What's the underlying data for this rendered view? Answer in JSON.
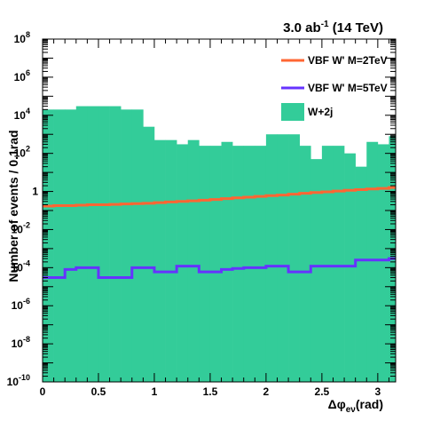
{
  "chart_data": {
    "type": "histogram",
    "title": "3.0 ab⁻¹ (14 TeV)",
    "title_parts": {
      "pre": "3.0 ab",
      "sup": "-1",
      "post": " (14 TeV)"
    },
    "xlabel": "Δφ",
    "xlabel_sub": "eν",
    "xlabel_unit": "(rad)",
    "ylabel": "Number of events / 0.1rad",
    "xlim": [
      0,
      3.16
    ],
    "ylim": [
      1e-10,
      100000000.0
    ],
    "y_scale": "log",
    "grid": false,
    "legend_position": "top-right",
    "x_ticks": [
      0,
      0.5,
      1,
      1.5,
      2,
      2.5,
      3
    ],
    "x_tick_labels": [
      "0",
      "0.5",
      "1",
      "1.5",
      "2",
      "2.5",
      "3"
    ],
    "y_ticks": [
      {
        "base": "10",
        "exp": "-10"
      },
      {
        "base": "10",
        "exp": "-8"
      },
      {
        "base": "10",
        "exp": "-6"
      },
      {
        "base": "10",
        "exp": "-4"
      },
      {
        "base": "10",
        "exp": "-2"
      },
      {
        "base": "1",
        "exp": ""
      },
      {
        "base": "10",
        "exp": "2"
      },
      {
        "base": "10",
        "exp": "4"
      },
      {
        "base": "10",
        "exp": "6"
      },
      {
        "base": "10",
        "exp": "8"
      }
    ],
    "bin_edges_start": 0,
    "bin_width": 0.1,
    "series": [
      {
        "name": "W+2j",
        "style": "filled",
        "color": "#33cc99",
        "values": [
          20000,
          20000,
          20000,
          30000,
          30000,
          30000,
          30000,
          20000,
          20000,
          2500,
          500,
          500,
          300,
          500,
          250,
          250,
          400,
          250,
          250,
          250,
          1000,
          1000,
          1000,
          250,
          50,
          250,
          250,
          100,
          20,
          400,
          300,
          800,
          800,
          500,
          300,
          200,
          200,
          200,
          500,
          500,
          200,
          200,
          500,
          200,
          200,
          300,
          300,
          200,
          500,
          300,
          300,
          300,
          200,
          200,
          200,
          200,
          300,
          300,
          300,
          300,
          250,
          500,
          500
        ]
      },
      {
        "name": "VBF W' M=2TeV",
        "style": "line",
        "color": "#ff6633",
        "values": [
          0.17,
          0.18,
          0.18,
          0.19,
          0.2,
          0.2,
          0.21,
          0.22,
          0.23,
          0.24,
          0.26,
          0.28,
          0.3,
          0.32,
          0.35,
          0.38,
          0.42,
          0.46,
          0.5,
          0.55,
          0.6,
          0.65,
          0.72,
          0.8,
          0.88,
          0.95,
          1.05,
          1.15,
          1.25,
          1.35,
          1.45,
          1.6,
          1.75,
          1.9,
          2.05,
          2.2,
          2.35,
          2.5,
          2.65,
          2.8,
          2.95,
          3.1,
          3.3,
          3.5,
          3.65,
          3.8,
          4.0,
          4.2,
          4.4,
          4.5,
          4.7,
          4.9,
          5.0,
          5.2,
          5.4,
          5.6,
          5.8,
          6.0,
          6.2,
          6.1,
          6.0,
          6.2,
          6.0
        ]
      },
      {
        "name": "VBF W' M=5TeV",
        "style": "line",
        "color": "#6633ff",
        "values": [
          3e-05,
          3e-05,
          8e-05,
          0.0001,
          0.0001,
          3e-05,
          3e-05,
          3e-05,
          0.0001,
          0.0001,
          6e-05,
          6e-05,
          0.00012,
          0.00012,
          6e-05,
          6e-05,
          8e-05,
          9e-05,
          0.0001,
          0.0001,
          0.00012,
          0.00012,
          6e-05,
          6e-05,
          0.00012,
          0.00012,
          0.00012,
          0.00012,
          0.00025,
          0.00025,
          0.00025,
          0.0003,
          0.0003,
          0.00025,
          0.00025,
          0.00022,
          0.00022,
          0.00015,
          0.00015,
          0.00025,
          0.0004,
          0.0006,
          0.0006,
          0.0005,
          0.0006,
          0.0008,
          0.001,
          0.0012,
          0.0012,
          0.0016,
          0.002,
          0.003,
          0.0035,
          0.0035,
          0.004,
          0.0045,
          0.005,
          0.0055,
          0.006,
          0.0075,
          0.008,
          0.0085,
          0.009
        ]
      }
    ]
  }
}
